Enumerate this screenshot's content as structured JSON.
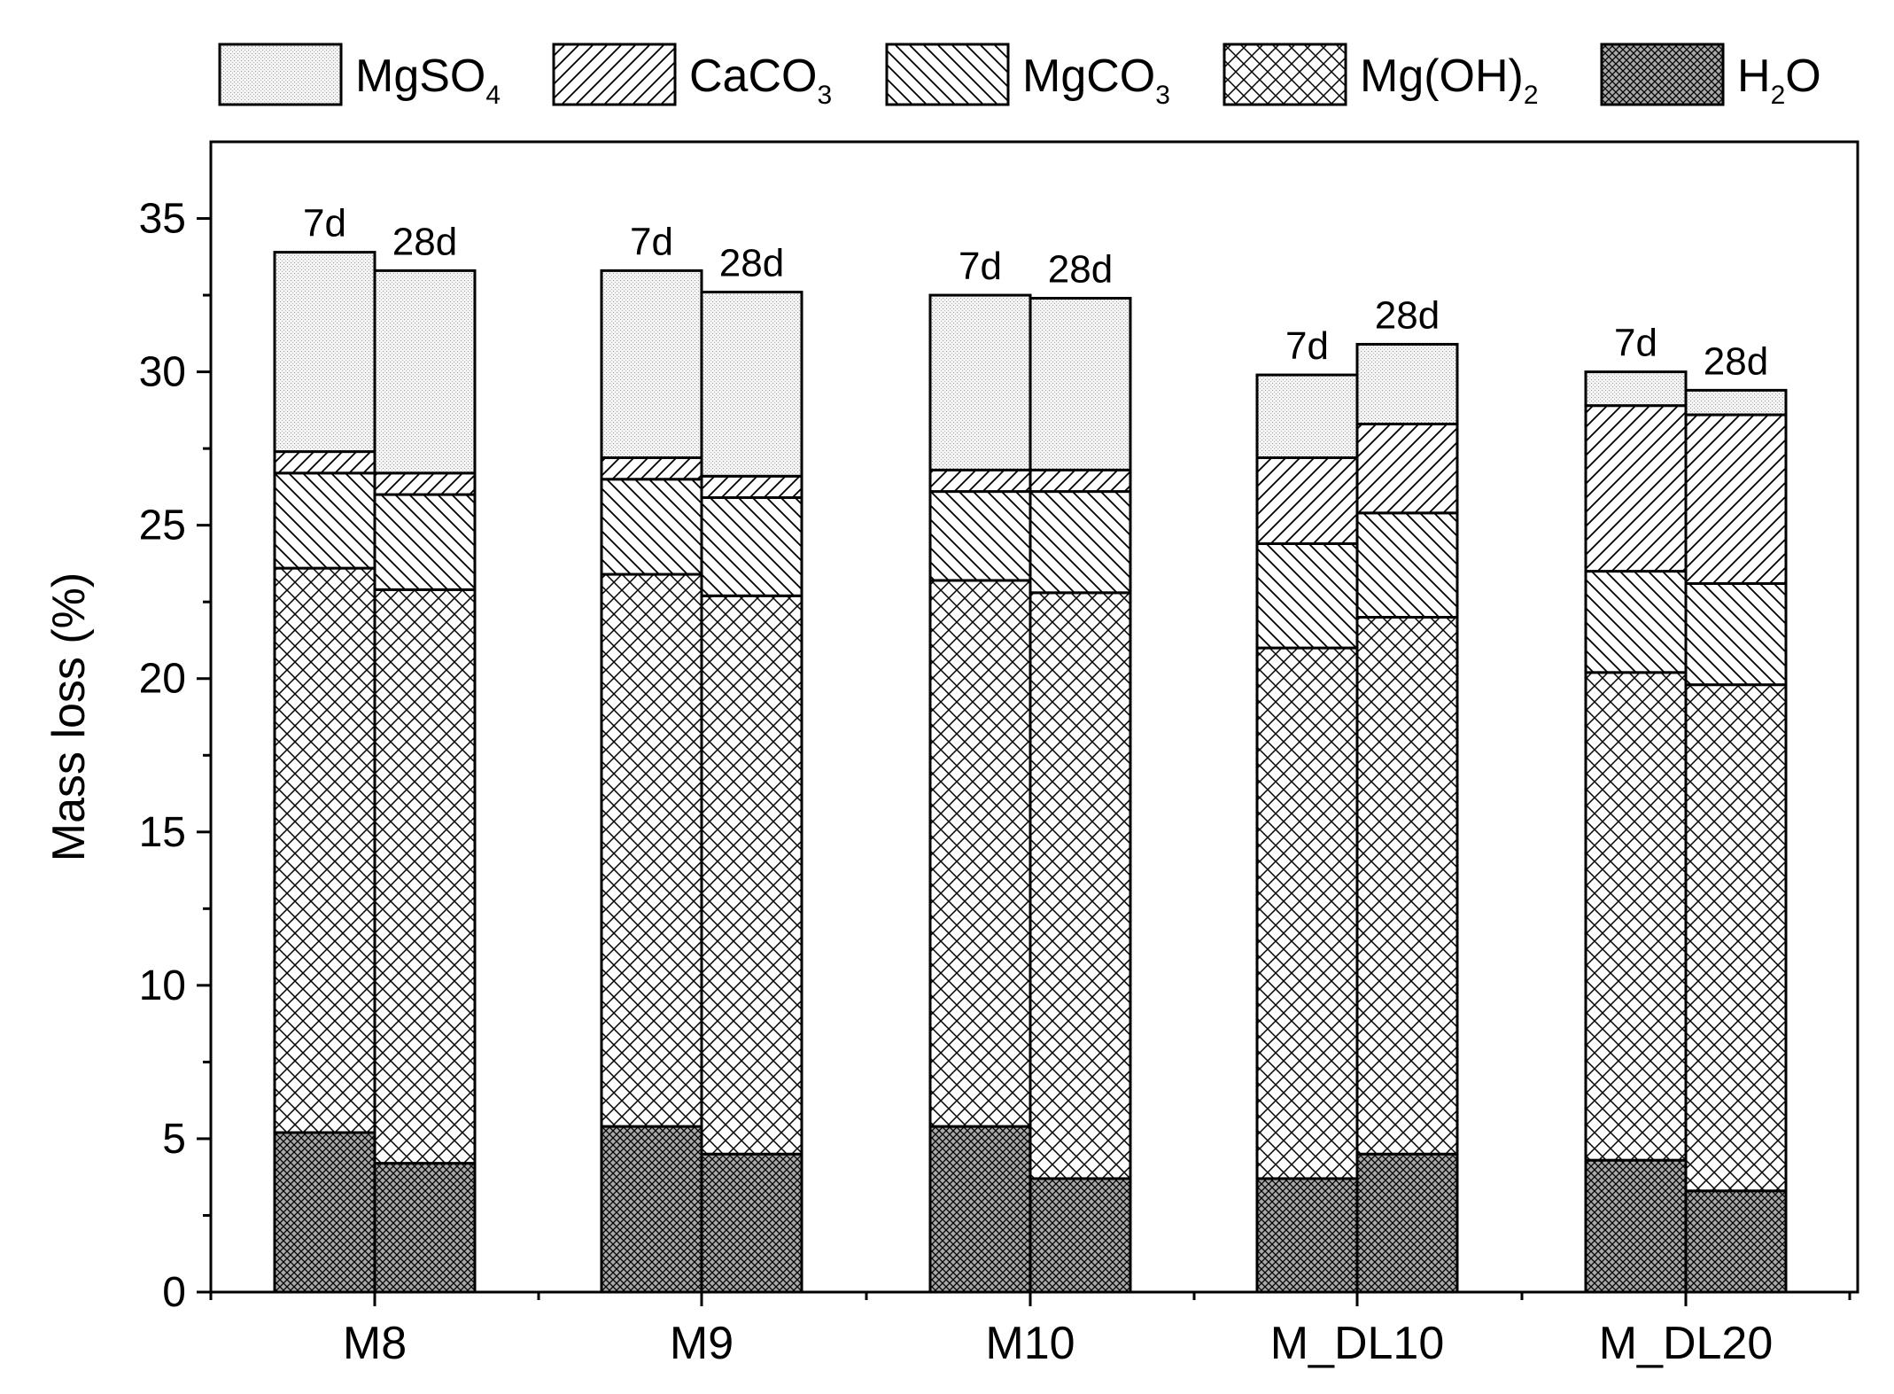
{
  "chart_data": {
    "type": "bar",
    "stacked": true,
    "title": "",
    "xlabel": "",
    "ylabel": "Mass loss (%)",
    "ylim": [
      0,
      37.5
    ],
    "yticks": [
      0,
      5,
      10,
      15,
      20,
      25,
      30,
      35
    ],
    "legend_position": "top",
    "categories": [
      "M8",
      "M9",
      "M10",
      "M_DL10",
      "M_DL20"
    ],
    "bar_labels": [
      "7d",
      "28d"
    ],
    "series": [
      {
        "name": "H2O",
        "label_main": "H",
        "label_sub": "2",
        "label_tail": "O",
        "pattern": "dense-crosshatch-grey",
        "values": [
          [
            5.2,
            4.2
          ],
          [
            5.4,
            4.5
          ],
          [
            5.4,
            3.7
          ],
          [
            3.7,
            4.5
          ],
          [
            4.3,
            3.3
          ]
        ]
      },
      {
        "name": "Mg(OH)2",
        "label_main": "Mg(OH)",
        "label_sub": "2",
        "label_tail": "",
        "pattern": "crosshatch",
        "values": [
          [
            18.4,
            18.7
          ],
          [
            18.0,
            18.2
          ],
          [
            17.8,
            19.1
          ],
          [
            17.3,
            17.5
          ],
          [
            15.9,
            16.5
          ]
        ]
      },
      {
        "name": "MgCO3",
        "label_main": "MgCO",
        "label_sub": "3",
        "label_tail": "",
        "pattern": "backslash",
        "values": [
          [
            3.1,
            3.1
          ],
          [
            3.1,
            3.2
          ],
          [
            2.9,
            3.3
          ],
          [
            3.4,
            3.4
          ],
          [
            3.3,
            3.3
          ]
        ]
      },
      {
        "name": "CaCO3",
        "label_main": "CaCO",
        "label_sub": "3",
        "label_tail": "",
        "pattern": "slash",
        "values": [
          [
            0.7,
            0.7
          ],
          [
            0.7,
            0.7
          ],
          [
            0.7,
            0.7
          ],
          [
            2.8,
            2.9
          ],
          [
            5.4,
            5.5
          ]
        ]
      },
      {
        "name": "MgSO4",
        "label_main": "MgSO",
        "label_sub": "4",
        "label_tail": "",
        "pattern": "dots",
        "values": [
          [
            6.5,
            6.6
          ],
          [
            6.1,
            6.0
          ],
          [
            5.7,
            5.6
          ],
          [
            2.7,
            2.6
          ],
          [
            1.1,
            0.8
          ]
        ]
      }
    ]
  }
}
